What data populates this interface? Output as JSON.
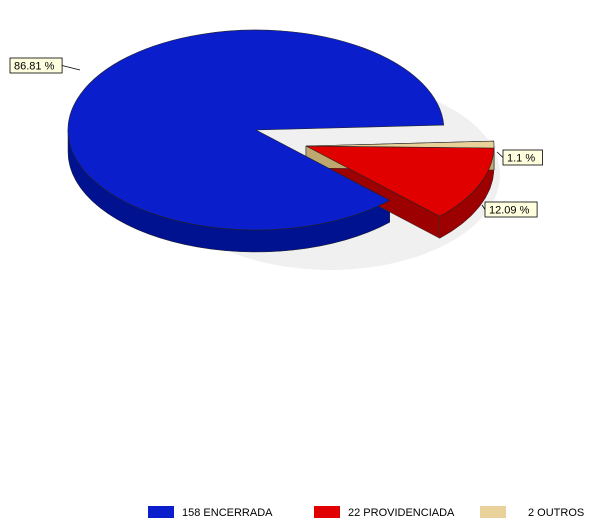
{
  "chart_data": {
    "type": "pie",
    "style": "3d-exploded",
    "slices": [
      {
        "label": "158 ENCERRADA",
        "count": 158,
        "percent": 86.81,
        "percent_label": "86.81 %",
        "color": "#0A1ECC",
        "side_color": "#00128F"
      },
      {
        "label": "22 PROVIDENCIADA",
        "count": 22,
        "percent": 12.09,
        "percent_label": "12.09 %",
        "color": "#E00000",
        "side_color": "#9C0000"
      },
      {
        "label": "2 OUTROS",
        "count": 2,
        "percent": 1.1,
        "percent_label": "1.1 %",
        "color": "#E8D29A",
        "side_color": "#BFA870"
      }
    ],
    "legend_position": "bottom-right",
    "label_box_color": "#FFFFE0"
  }
}
